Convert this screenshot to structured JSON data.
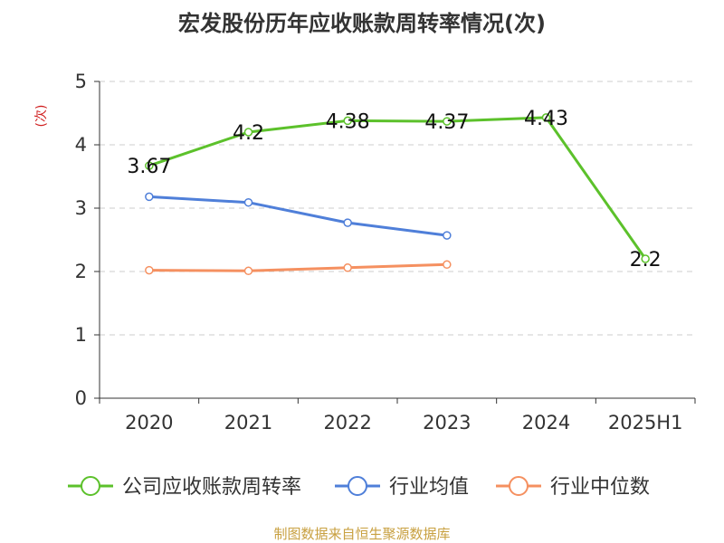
{
  "chart_data": {
    "type": "line",
    "title": "宏发股份历年应收账款周转率情况(次)",
    "ylabel": "(次)",
    "ylim": [
      0,
      5
    ],
    "yticks": [
      0,
      1,
      2,
      3,
      4,
      5
    ],
    "categories": [
      "2020",
      "2021",
      "2022",
      "2023",
      "2024",
      "2025H1"
    ],
    "grid": true,
    "legend_position": "bottom",
    "series": [
      {
        "name": "公司应收账款周转率",
        "color": "#5cc12b",
        "values": [
          3.67,
          4.2,
          4.38,
          4.37,
          4.43,
          2.2
        ],
        "labels": [
          "3.67",
          "4.2",
          "4.38",
          "4.37",
          "4.43",
          "2.2"
        ]
      },
      {
        "name": "行业均值",
        "color": "#4f7fd9",
        "values": [
          3.18,
          3.09,
          2.77,
          2.57,
          null,
          null
        ]
      },
      {
        "name": "行业中位数",
        "color": "#f59060",
        "values": [
          2.02,
          2.01,
          2.06,
          2.11,
          null,
          null
        ]
      }
    ]
  },
  "footer": {
    "source": "制图数据来自恒生聚源数据库"
  }
}
